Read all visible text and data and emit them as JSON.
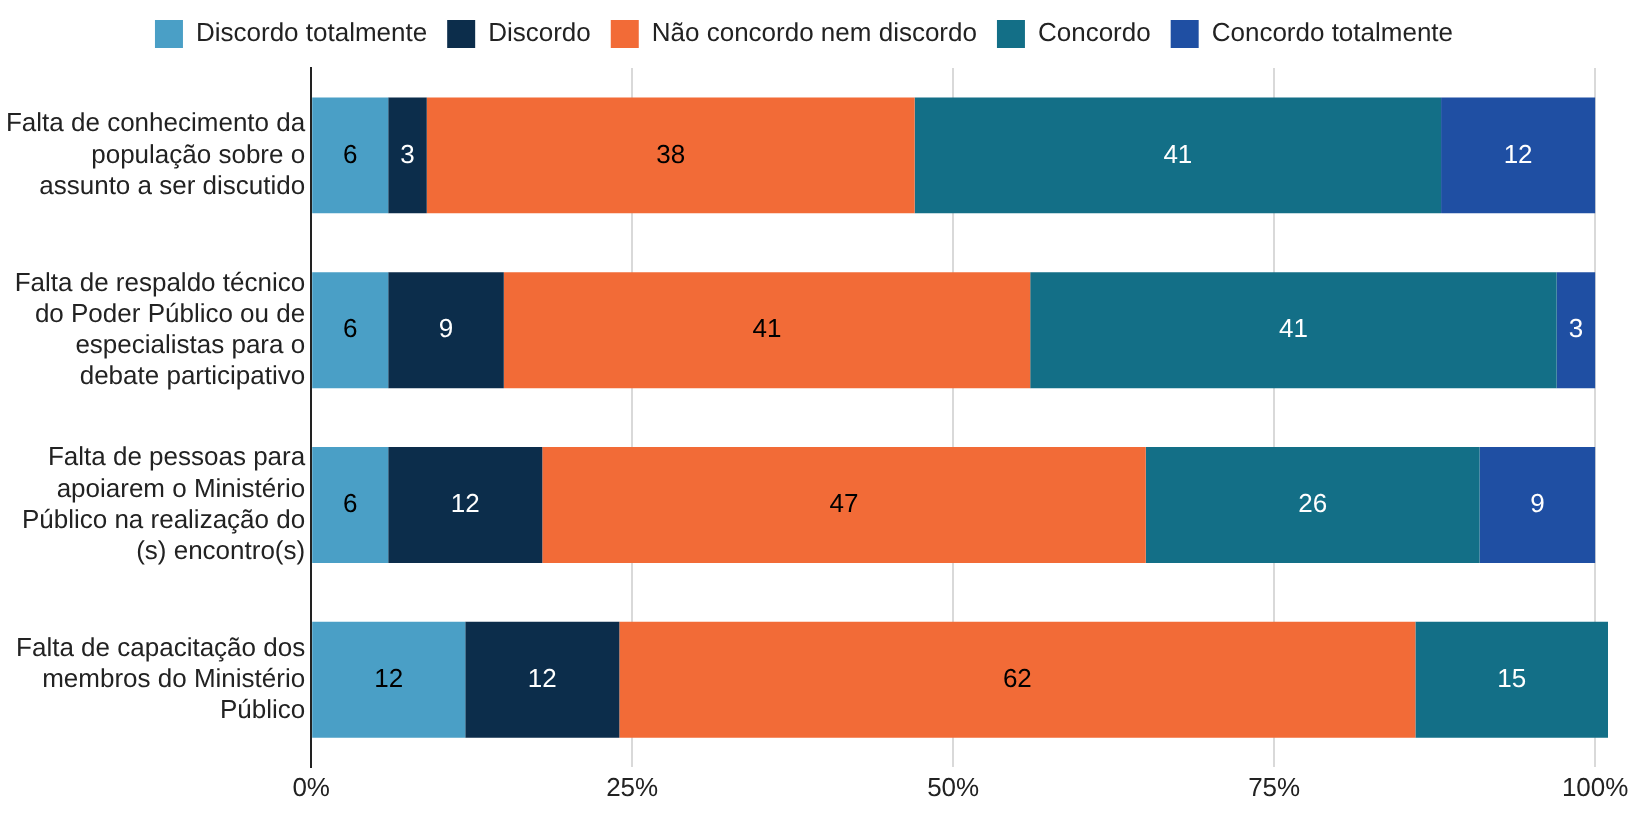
{
  "chart_data": {
    "type": "bar",
    "orientation": "horizontal",
    "stacked": true,
    "data_labels": true,
    "legend": "top",
    "grid": "x",
    "categories": [
      "Falta de conhecimento da população sobre o assunto a ser discutido",
      "Falta de respaldo técnico do Poder Público ou de especialistas para o debate participativo",
      "Falta de pessoas para apoiarem o Ministério Público na realização do (s) encontro(s)",
      "Falta de capacitação dos membros do Ministério Público"
    ],
    "series": [
      {
        "name": "Discordo totalmente",
        "color": "#4a9fc6",
        "values": [
          6,
          6,
          6,
          12
        ]
      },
      {
        "name": "Discordo",
        "color": "#0c2d4b",
        "values": [
          3,
          9,
          12,
          12
        ]
      },
      {
        "name": "Não concordo nem discordo",
        "color": "#f26b37",
        "values": [
          38,
          41,
          47,
          62
        ]
      },
      {
        "name": "Concordo",
        "color": "#136f87",
        "values": [
          41,
          41,
          26,
          15
        ]
      },
      {
        "name": "Concordo totalmente",
        "color": "#1f4fa3",
        "values": [
          12,
          3,
          9,
          null
        ]
      }
    ],
    "xlim": [
      0,
      101
    ],
    "xticks": [
      {
        "value": 0,
        "label": "0%"
      },
      {
        "value": 25,
        "label": "25%"
      },
      {
        "value": 50,
        "label": "50%"
      },
      {
        "value": 75,
        "label": "75%"
      },
      {
        "value": 100,
        "label": "100%"
      }
    ]
  }
}
